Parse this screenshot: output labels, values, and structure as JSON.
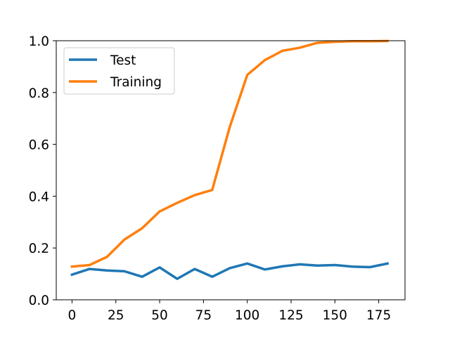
{
  "chart_data": {
    "type": "line",
    "title": "",
    "xlabel": "",
    "ylabel": "",
    "xlim": [
      -9,
      190
    ],
    "ylim": [
      0.0,
      1.0
    ],
    "grid": false,
    "legend_position": "top-left",
    "xticks": [
      0,
      25,
      50,
      75,
      100,
      125,
      150,
      175
    ],
    "xtick_labels": [
      "0",
      "25",
      "50",
      "75",
      "100",
      "125",
      "150",
      "175"
    ],
    "yticks": [
      0.0,
      0.2,
      0.4,
      0.6,
      0.8,
      1.0
    ],
    "ytick_labels": [
      "0.0",
      "0.2",
      "0.4",
      "0.6",
      "0.8",
      "1.0"
    ],
    "x": [
      0,
      10,
      20,
      30,
      40,
      50,
      60,
      70,
      80,
      90,
      100,
      110,
      120,
      130,
      140,
      150,
      160,
      170,
      180
    ],
    "series": [
      {
        "name": "Test",
        "color": "#1f77b4",
        "values": [
          0.097,
          0.119,
          0.113,
          0.11,
          0.089,
          0.125,
          0.081,
          0.119,
          0.089,
          0.122,
          0.14,
          0.117,
          0.129,
          0.137,
          0.132,
          0.134,
          0.128,
          0.126,
          0.14
        ]
      },
      {
        "name": "Training",
        "color": "#ff7f0e",
        "values": [
          0.128,
          0.134,
          0.166,
          0.233,
          0.276,
          0.341,
          0.374,
          0.404,
          0.424,
          0.667,
          0.868,
          0.925,
          0.961,
          0.973,
          0.992,
          0.996,
          0.998,
          0.998,
          0.999
        ]
      }
    ]
  }
}
